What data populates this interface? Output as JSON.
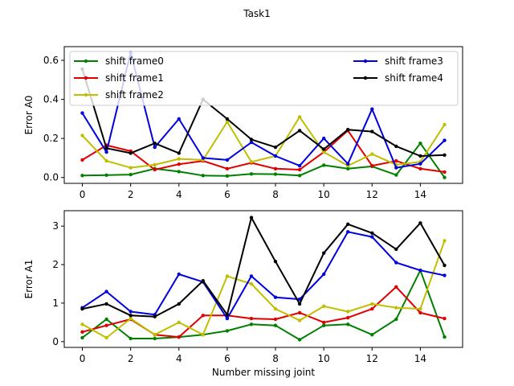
{
  "chart_data": {
    "type": "line",
    "suptitle": "Task1",
    "xlabel": "Number missing joint",
    "x": [
      0,
      1,
      2,
      3,
      4,
      5,
      6,
      7,
      8,
      9,
      10,
      11,
      12,
      13,
      14,
      15
    ],
    "xlim": [
      -0.75,
      15.75
    ],
    "xticks": [
      0,
      2,
      4,
      6,
      8,
      10,
      12,
      14
    ],
    "series_styles": [
      {
        "name": "shift frame0",
        "color": "#008000"
      },
      {
        "name": "shift frame1",
        "color": "#e00000"
      },
      {
        "name": "shift frame2",
        "color": "#bfbf00"
      },
      {
        "name": "shift frame3",
        "color": "#0000e0"
      },
      {
        "name": "shift frame4",
        "color": "#000000"
      }
    ],
    "legend_placement": "top",
    "panels": [
      {
        "ylabel": "Error A0",
        "ylim": [
          -0.03,
          0.67
        ],
        "yticks": [
          0.0,
          0.2,
          0.4,
          0.6
        ],
        "ytick_labels": [
          "0.0",
          "0.2",
          "0.4",
          "0.6"
        ],
        "legend": true,
        "series": [
          {
            "name": "shift frame0",
            "values": [
              0.01,
              0.012,
              0.015,
              0.045,
              0.03,
              0.01,
              0.008,
              0.018,
              0.017,
              0.01,
              0.063,
              0.045,
              0.057,
              0.013,
              0.175,
              0.0
            ]
          },
          {
            "name": "shift frame1",
            "values": [
              0.09,
              0.165,
              0.135,
              0.04,
              0.068,
              0.085,
              0.045,
              0.075,
              0.045,
              0.04,
              0.13,
              0.24,
              0.06,
              0.085,
              0.045,
              0.028
            ]
          },
          {
            "name": "shift frame2",
            "values": [
              0.215,
              0.085,
              0.05,
              0.065,
              0.095,
              0.09,
              0.285,
              0.08,
              0.11,
              0.31,
              0.13,
              0.06,
              0.12,
              0.065,
              0.08,
              0.27
            ]
          },
          {
            "name": "shift frame3",
            "values": [
              0.33,
              0.13,
              0.64,
              0.155,
              0.3,
              0.1,
              0.09,
              0.18,
              0.11,
              0.06,
              0.2,
              0.07,
              0.35,
              0.05,
              0.07,
              0.19
            ]
          },
          {
            "name": "shift frame4",
            "values": [
              0.555,
              0.15,
              0.125,
              0.175,
              0.125,
              0.4,
              0.3,
              0.195,
              0.155,
              0.24,
              0.145,
              0.245,
              0.235,
              0.16,
              0.11,
              0.115
            ]
          }
        ]
      },
      {
        "ylabel": "Error A1",
        "ylim": [
          -0.15,
          3.4
        ],
        "yticks": [
          0,
          1,
          2,
          3
        ],
        "ytick_labels": [
          "0",
          "1",
          "2",
          "3"
        ],
        "legend": false,
        "series": [
          {
            "name": "shift frame0",
            "values": [
              0.1,
              0.58,
              0.08,
              0.08,
              0.12,
              0.18,
              0.28,
              0.45,
              0.42,
              0.05,
              0.42,
              0.45,
              0.18,
              0.58,
              1.85,
              0.12
            ]
          },
          {
            "name": "shift frame1",
            "values": [
              0.25,
              0.42,
              0.58,
              0.18,
              0.12,
              0.68,
              0.68,
              0.6,
              0.58,
              0.75,
              0.5,
              0.62,
              0.85,
              1.42,
              0.75,
              0.6
            ]
          },
          {
            "name": "shift frame2",
            "values": [
              0.45,
              0.1,
              0.6,
              0.18,
              0.5,
              0.18,
              1.7,
              1.5,
              0.85,
              0.55,
              0.92,
              0.78,
              0.98,
              0.88,
              0.85,
              2.62
            ]
          },
          {
            "name": "shift frame3",
            "values": [
              0.88,
              1.3,
              0.78,
              0.7,
              1.75,
              1.55,
              0.6,
              1.7,
              1.15,
              1.1,
              1.75,
              2.85,
              2.72,
              2.05,
              1.85,
              1.72
            ]
          },
          {
            "name": "shift frame4",
            "values": [
              0.85,
              0.98,
              0.68,
              0.65,
              0.98,
              1.58,
              0.7,
              3.22,
              2.08,
              0.98,
              2.3,
              3.05,
              2.82,
              2.4,
              3.08,
              1.98
            ]
          }
        ]
      }
    ]
  }
}
